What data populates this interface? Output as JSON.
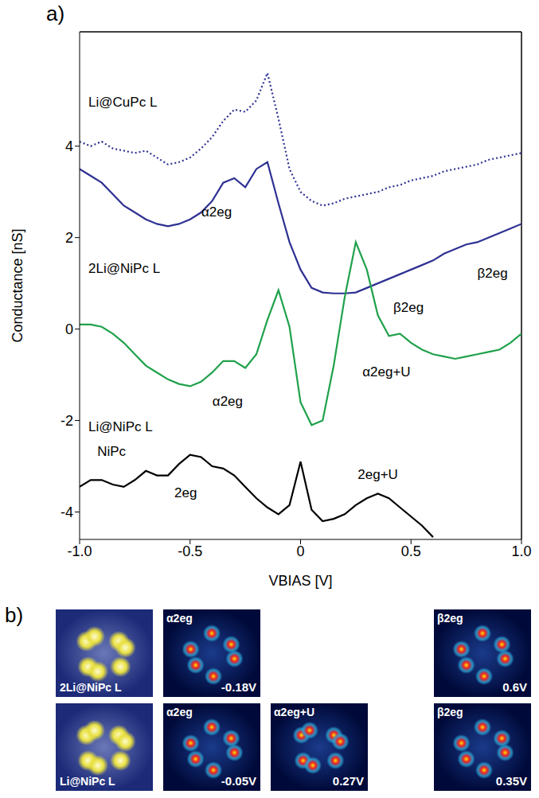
{
  "chart_data": {
    "type": "line",
    "panel_label": "a)",
    "x_label": "VBIAS [V]",
    "y_label": "Conductance [nS]",
    "xlim": [
      -1,
      1
    ],
    "xticks": [
      {
        "value": -1,
        "label": "-1.0"
      },
      -0.5,
      0,
      0.5,
      {
        "value": 1,
        "label": "1.0"
      }
    ],
    "ylim": [
      -4.6,
      6.5
    ],
    "yticks": [
      -4,
      -2,
      0,
      2,
      4
    ],
    "grid": false,
    "x": [
      -1,
      -0.95,
      -0.9,
      -0.85,
      -0.8,
      -0.75,
      -0.7,
      -0.65,
      -0.6,
      -0.55,
      -0.5,
      -0.45,
      -0.4,
      -0.35,
      -0.3,
      -0.25,
      -0.2,
      -0.15,
      -0.1,
      -0.05,
      0,
      0.05,
      0.1,
      0.15,
      0.2,
      0.25,
      0.3,
      0.35,
      0.4,
      0.45,
      0.5,
      0.55,
      0.6,
      0.65,
      0.7,
      0.75,
      0.8,
      0.85,
      0.9,
      0.95,
      1
    ],
    "series": [
      {
        "name": "Li@CuPc L",
        "color": "#2e3192",
        "line_style": "dotted",
        "values": [
          4.1,
          4.0,
          4.1,
          3.95,
          3.9,
          3.85,
          3.9,
          3.75,
          3.6,
          3.65,
          3.75,
          3.95,
          4.2,
          4.55,
          4.8,
          4.75,
          5.0,
          5.6,
          4.6,
          3.5,
          3.0,
          2.8,
          2.7,
          2.75,
          2.85,
          2.9,
          2.95,
          3.0,
          3.1,
          3.15,
          3.25,
          3.3,
          3.35,
          3.45,
          3.5,
          3.55,
          3.6,
          3.7,
          3.75,
          3.8,
          3.85
        ]
      },
      {
        "name": "2Li@NiPc L",
        "color": "#2e3192",
        "line_style": "solid",
        "values": [
          3.5,
          3.35,
          3.2,
          2.95,
          2.7,
          2.55,
          2.4,
          2.3,
          2.25,
          2.3,
          2.4,
          2.55,
          2.8,
          3.2,
          3.3,
          3.1,
          3.5,
          3.65,
          2.75,
          1.9,
          1.3,
          0.9,
          0.8,
          0.78,
          0.78,
          0.8,
          0.9,
          1.0,
          1.1,
          1.2,
          1.3,
          1.4,
          1.5,
          1.65,
          1.75,
          1.85,
          1.9,
          2.0,
          2.1,
          2.2,
          2.3
        ]
      },
      {
        "name": "Li@NiPc L",
        "color": "#1fa14b",
        "line_style": "solid",
        "values": [
          0.1,
          0.1,
          0.05,
          -0.1,
          -0.3,
          -0.55,
          -0.8,
          -0.95,
          -1.1,
          -1.2,
          -1.25,
          -1.15,
          -0.95,
          -0.7,
          -0.7,
          -0.85,
          -0.55,
          0.2,
          0.85,
          0.05,
          -1.6,
          -2.1,
          -2.0,
          -0.8,
          0.7,
          1.9,
          1.3,
          0.3,
          -0.15,
          -0.1,
          -0.3,
          -0.45,
          -0.55,
          -0.6,
          -0.65,
          -0.6,
          -0.55,
          -0.5,
          -0.45,
          -0.3,
          -0.1
        ]
      },
      {
        "name": "NiPc",
        "color": "#000000",
        "line_style": "solid",
        "values": [
          -3.45,
          -3.3,
          -3.3,
          -3.4,
          -3.45,
          -3.3,
          -3.1,
          -3.2,
          -3.2,
          -2.95,
          -2.75,
          -2.8,
          -3.0,
          -3.05,
          -3.2,
          -3.45,
          -3.7,
          -3.9,
          -4.05,
          -3.85,
          -2.9,
          -3.95,
          -4.2,
          -4.15,
          -4.05,
          -3.85,
          -3.7,
          -3.6,
          -3.7,
          -3.9,
          -4.1,
          -4.3,
          -4.55,
          null,
          null,
          null,
          null,
          null,
          null,
          null,
          null
        ]
      }
    ],
    "annotations": [
      "Li@CuPc L",
      "α2eg",
      "2Li@NiPc L",
      "β2eg",
      "β2eg",
      "α2eg+U",
      "α2eg",
      "Li@NiPc L",
      "NiPc",
      "2eg",
      "2eg+U"
    ]
  },
  "images": {
    "panel_label": "b)",
    "rows": [
      [
        {
          "label": "2Li@NiPc L"
        },
        {
          "title": "α2eg",
          "bias": "-0.18V"
        },
        null,
        {
          "title": "β2eg",
          "bias": "0.6V"
        }
      ],
      [
        {
          "label": "Li@NiPc L"
        },
        {
          "title": "α2eg",
          "bias": "-0.05V"
        },
        {
          "title": "α2eg+U",
          "bias": "0.27V"
        },
        {
          "title": "β2eg",
          "bias": "0.35V"
        }
      ]
    ]
  }
}
